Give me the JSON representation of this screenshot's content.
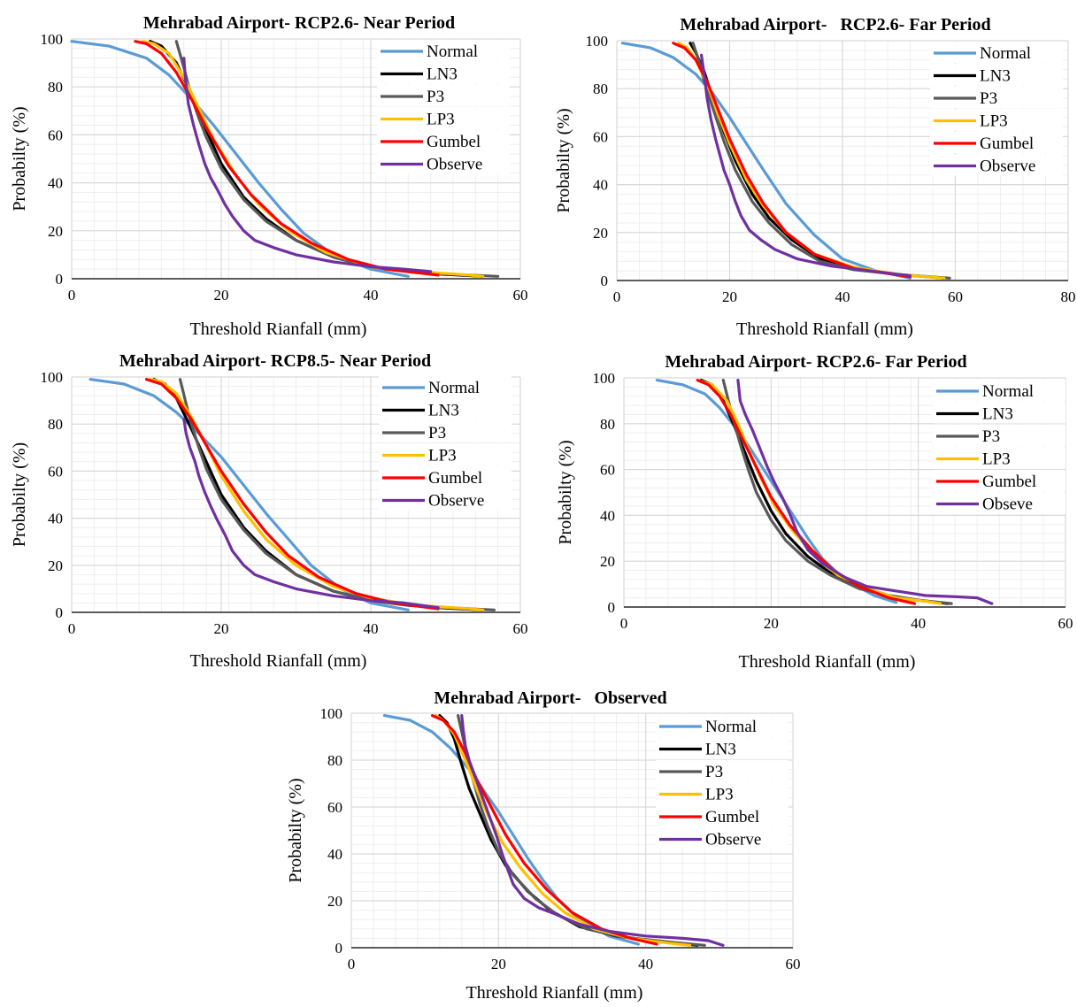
{
  "colors": {
    "Normal": "#5b9bd5",
    "LN3": "#000000",
    "P3": "#595959",
    "LP3": "#ffc000",
    "Gumbel": "#ff0000",
    "Observe": "#7030a0",
    "Obseve": "#7030a0"
  },
  "chart_data": [
    {
      "type": "line",
      "title": "Mehrabad Airport- RCP2.6- Near Period",
      "xlabel": "Threshold Rianfall (mm)",
      "ylabel": "Probabilty (%)",
      "xlim": [
        0,
        60
      ],
      "ylim": [
        0,
        100
      ],
      "xticks": [
        "0",
        "20",
        "40",
        "60"
      ],
      "yticks": [
        "0",
        "20",
        "40",
        "60",
        "80",
        "100"
      ],
      "grid": true,
      "legend": "top-right",
      "series": [
        {
          "name": "Normal",
          "x": [
            0,
            5,
            10,
            13,
            16,
            19,
            22,
            25,
            28,
            31,
            35,
            40,
            45
          ],
          "y": [
            99,
            97,
            92,
            85,
            75,
            64,
            52,
            40,
            29,
            19,
            10,
            4,
            1
          ]
        },
        {
          "name": "LN3",
          "x": [
            10.5,
            12,
            14,
            16,
            18,
            20,
            23,
            26,
            30,
            35,
            40,
            45,
            50,
            55
          ],
          "y": [
            99,
            97,
            90,
            77,
            62,
            48,
            34,
            25,
            16,
            9,
            5,
            3,
            1.8,
            1
          ]
        },
        {
          "name": "P3",
          "x": [
            14,
            15,
            16,
            17,
            18,
            20,
            23,
            26,
            30,
            35,
            40,
            45,
            50,
            57
          ],
          "y": [
            99,
            88,
            76,
            67,
            59,
            46,
            33,
            24,
            16,
            9,
            5,
            3,
            2,
            1
          ]
        },
        {
          "name": "LP3",
          "x": [
            9.5,
            11,
            13,
            15,
            17,
            19,
            22,
            25,
            29,
            34,
            40,
            46,
            52,
            55
          ],
          "y": [
            99,
            98,
            94,
            84,
            71,
            58,
            43,
            31,
            20,
            11,
            5,
            3,
            1.8,
            1
          ]
        },
        {
          "name": "Gumbel",
          "x": [
            8.5,
            10,
            12,
            14,
            16,
            18,
            21,
            24,
            28,
            32,
            37,
            42,
            49
          ],
          "y": [
            99,
            98,
            94,
            86,
            75,
            63,
            47,
            35,
            23,
            15,
            8,
            4,
            1.5
          ]
        },
        {
          "name": "Observe",
          "x": [
            15,
            15.2,
            15.6,
            16.3,
            17,
            17.8,
            18.6,
            19.5,
            20.5,
            21.5,
            23,
            24.5,
            27,
            30,
            35,
            40,
            44.5,
            48
          ],
          "y": [
            92,
            84,
            73,
            64,
            56,
            48,
            42,
            37,
            31,
            26,
            20,
            16,
            13,
            10,
            7,
            5,
            4,
            3
          ]
        }
      ]
    },
    {
      "type": "line",
      "title": "Mehrabad Airport-   RCP2.6- Far Period",
      "xlabel": "Threshold Rianfall (mm)",
      "ylabel": "Probabilty (%)",
      "xlim": [
        0,
        80
      ],
      "ylim": [
        0,
        100
      ],
      "xticks": [
        "0",
        "20",
        "40",
        "60",
        "80"
      ],
      "yticks": [
        "0",
        "20",
        "40",
        "60",
        "80",
        "100"
      ],
      "grid": true,
      "legend": "top-right",
      "series": [
        {
          "name": "Normal",
          "x": [
            1,
            6,
            10,
            14,
            17,
            20,
            23,
            26,
            30,
            35,
            40,
            46,
            52
          ],
          "y": [
            99,
            97,
            93,
            86,
            78,
            68,
            57,
            46,
            32,
            19,
            9,
            4,
            1
          ]
        },
        {
          "name": "LN3",
          "x": [
            13,
            14,
            15.5,
            17,
            19,
            21,
            24,
            27,
            31,
            36,
            42,
            50,
            58
          ],
          "y": [
            99,
            95,
            87,
            76,
            62,
            50,
            36,
            26,
            17,
            9,
            5,
            2.5,
            1
          ]
        },
        {
          "name": "P3",
          "x": [
            13.5,
            14.5,
            15.5,
            17,
            19,
            21,
            24,
            27,
            31,
            36,
            42,
            50,
            59
          ],
          "y": [
            99,
            92,
            83,
            72,
            58,
            46,
            33,
            24,
            15,
            8,
            4.5,
            2.5,
            1
          ]
        },
        {
          "name": "LP3",
          "x": [
            11,
            12.5,
            14,
            16,
            18,
            20,
            23,
            26,
            30,
            35,
            42,
            50,
            58
          ],
          "y": [
            99,
            97,
            92,
            82,
            69,
            57,
            42,
            31,
            20,
            11,
            5.5,
            2.5,
            1
          ]
        },
        {
          "name": "Gumbel",
          "x": [
            10,
            12,
            14,
            16,
            18,
            20,
            23,
            26,
            30,
            35,
            42,
            52
          ],
          "y": [
            99,
            97,
            92,
            83,
            71,
            59,
            44,
            32,
            20,
            11,
            5,
            1.5
          ]
        },
        {
          "name": "Observe",
          "x": [
            15,
            15.5,
            16,
            16.7,
            17.5,
            18.3,
            19,
            20,
            21,
            22,
            23.5,
            25.5,
            28,
            32,
            38,
            45,
            52
          ],
          "y": [
            94,
            86,
            76,
            67,
            59,
            52,
            46,
            40,
            33,
            27,
            21,
            17,
            13,
            9,
            6,
            4,
            2
          ]
        }
      ]
    },
    {
      "type": "line",
      "title": "Mehrabad Airport- RCP8.5- Near Period",
      "xlabel": "Threshold Rianfall (mm)",
      "ylabel": "Probabilty (%)",
      "xlim": [
        0,
        60
      ],
      "ylim": [
        0,
        100
      ],
      "xticks": [
        "0",
        "20",
        "40",
        "60"
      ],
      "yticks": [
        "0",
        "20",
        "40",
        "60",
        "80",
        "100"
      ],
      "grid": true,
      "legend": "top-right",
      "series": [
        {
          "name": "Normal",
          "x": [
            2.5,
            7,
            11,
            14,
            17,
            20,
            23,
            26,
            29,
            32,
            36,
            40,
            45
          ],
          "y": [
            99,
            97,
            92,
            85,
            76,
            66,
            54,
            42,
            31,
            20,
            10,
            4,
            1
          ]
        },
        {
          "name": "LN3",
          "x": [
            11,
            12.5,
            14,
            16,
            18,
            20,
            23,
            26,
            30,
            35,
            40,
            45,
            50,
            55
          ],
          "y": [
            99,
            97,
            91,
            78,
            64,
            50,
            36,
            26,
            16,
            9,
            5,
            3,
            1.8,
            1
          ]
        },
        {
          "name": "P3",
          "x": [
            14.5,
            15.2,
            16,
            17,
            18,
            20,
            23,
            26,
            30,
            35,
            40,
            45,
            50,
            56.5
          ],
          "y": [
            99,
            90,
            80,
            70,
            61,
            48,
            35,
            25,
            16,
            9,
            5,
            3,
            2,
            1
          ]
        },
        {
          "name": "LP3",
          "x": [
            10.5,
            12,
            14,
            16,
            18,
            20,
            23,
            26,
            30,
            35,
            40,
            46,
            52,
            55
          ],
          "y": [
            99,
            98,
            93,
            83,
            71,
            58,
            43,
            31,
            20,
            11,
            6,
            3,
            1.8,
            1
          ]
        },
        {
          "name": "Gumbel",
          "x": [
            10,
            12,
            14,
            16,
            18,
            20,
            23,
            26,
            29,
            33,
            38,
            43,
            49
          ],
          "y": [
            99,
            97,
            91,
            82,
            71,
            60,
            46,
            34,
            24,
            15,
            8,
            4,
            1.5
          ]
        },
        {
          "name": "Observe",
          "x": [
            15,
            15.3,
            15.8,
            16.5,
            17,
            17.8,
            18.6,
            19.5,
            20.5,
            21.5,
            23,
            24.5,
            27,
            30,
            35,
            40,
            44.5,
            49
          ],
          "y": [
            82,
            76,
            70,
            64,
            58,
            51,
            45,
            39,
            33,
            26,
            20,
            16,
            13,
            10,
            7,
            5,
            4,
            2
          ]
        }
      ]
    },
    {
      "type": "line",
      "title": "Mehrabad Airport- RCP2.6- Far Period",
      "xlabel": "Threshold Rianfall (mm)",
      "ylabel": "Probabilty (%)",
      "xlim": [
        0,
        60
      ],
      "ylim": [
        0,
        100
      ],
      "xticks": [
        "0",
        "20",
        "40",
        "60"
      ],
      "yticks": [
        "0",
        "20",
        "40",
        "60",
        "80",
        "100"
      ],
      "grid": true,
      "legend": "top-right",
      "series": [
        {
          "name": "Normal",
          "x": [
            4.5,
            8,
            11,
            13,
            15,
            17,
            19,
            21,
            23,
            25,
            27,
            30,
            34,
            37
          ],
          "y": [
            99,
            97,
            93,
            87,
            79,
            70,
            60,
            50,
            40,
            30,
            21,
            12,
            5,
            2
          ]
        },
        {
          "name": "LN3",
          "x": [
            10.5,
            12,
            13.5,
            15,
            16.5,
            18,
            20,
            22,
            25,
            28,
            32,
            36,
            40,
            44
          ],
          "y": [
            99,
            97,
            90,
            79,
            67,
            55,
            42,
            32,
            22,
            15,
            9,
            5,
            3,
            1.5
          ]
        },
        {
          "name": "P3",
          "x": [
            13.5,
            14.2,
            15,
            16,
            17,
            18,
            20,
            22,
            25,
            28,
            32,
            36,
            40,
            44.5
          ],
          "y": [
            99,
            90,
            80,
            69,
            59,
            50,
            38,
            29,
            20,
            14,
            8,
            5,
            3,
            1.5
          ]
        },
        {
          "name": "LP3",
          "x": [
            10,
            12,
            14,
            15.5,
            17,
            18.5,
            20.5,
            23,
            26,
            29,
            33,
            37,
            41,
            43
          ],
          "y": [
            99,
            97,
            90,
            80,
            68,
            57,
            44,
            33,
            22,
            14,
            8,
            4,
            2.5,
            1.5
          ]
        },
        {
          "name": "Gumbel",
          "x": [
            10,
            11.5,
            13,
            14.5,
            16,
            18,
            20,
            22.5,
            25.5,
            28.5,
            32,
            36,
            39.5
          ],
          "y": [
            99,
            97,
            92,
            84,
            74,
            61,
            48,
            36,
            25,
            16,
            9,
            4,
            1.5
          ]
        },
        {
          "name": "Obseve",
          "x": [
            15.5,
            15.8,
            16.5,
            17.5,
            18.5,
            19.5,
            20.5,
            21.5,
            22.5,
            23.5,
            25,
            27,
            30,
            33,
            37,
            41,
            45,
            48,
            50
          ],
          "y": [
            99,
            90,
            84,
            77,
            69,
            61,
            54,
            48,
            41,
            33,
            25,
            19,
            13,
            9,
            7,
            5,
            4.5,
            4,
            1.5
          ]
        }
      ]
    },
    {
      "type": "line",
      "title": "Mehrabad Airport-   Observed",
      "xlabel": "Threshold Rianfall (mm)",
      "ylabel": "Probabilty (%)",
      "xlim": [
        0,
        60
      ],
      "ylim": [
        0,
        100
      ],
      "xticks": [
        "0",
        "20",
        "40",
        "60"
      ],
      "yticks": [
        "0",
        "20",
        "40",
        "60",
        "80",
        "100"
      ],
      "grid": true,
      "legend": "top-right",
      "series": [
        {
          "name": "Normal",
          "x": [
            4.5,
            8,
            11,
            13.5,
            16,
            18,
            20,
            22,
            24,
            26,
            28,
            31,
            35,
            39
          ],
          "y": [
            99,
            97,
            92,
            85,
            76,
            67,
            58,
            48,
            38,
            29,
            21,
            12,
            5,
            1.5
          ]
        },
        {
          "name": "LN3",
          "x": [
            12,
            13,
            14,
            15,
            16,
            17.5,
            19,
            21,
            24,
            27,
            31,
            36,
            42,
            47
          ],
          "y": [
            99,
            96,
            89,
            78,
            68,
            57,
            46,
            35,
            24,
            16,
            9,
            5,
            2.5,
            1
          ]
        },
        {
          "name": "P3",
          "x": [
            14.5,
            15,
            15.7,
            16.5,
            17.5,
            18.5,
            20,
            22,
            25,
            28,
            32,
            37,
            43,
            48
          ],
          "y": [
            99,
            92,
            82,
            72,
            61,
            52,
            41,
            31,
            21,
            14,
            8,
            4.5,
            2.5,
            1
          ]
        },
        {
          "name": "LP3",
          "x": [
            11.5,
            12.5,
            14,
            15.5,
            17,
            18.5,
            20.5,
            23,
            26,
            29,
            33,
            38,
            43,
            46
          ],
          "y": [
            99,
            97,
            91,
            80,
            68,
            57,
            45,
            34,
            23,
            15,
            8,
            4,
            2,
            1
          ]
        },
        {
          "name": "Gumbel",
          "x": [
            11,
            12.5,
            14,
            15.5,
            17,
            19,
            21,
            23.5,
            26.5,
            30,
            34,
            38,
            41.5
          ],
          "y": [
            99,
            97,
            92,
            83,
            72,
            60,
            48,
            36,
            25,
            15,
            8,
            4,
            1.5
          ]
        },
        {
          "name": "Observe",
          "x": [
            15,
            15.2,
            15.5,
            16,
            16.7,
            17.5,
            18.3,
            19,
            19.8,
            20.5,
            21.3,
            22,
            23.5,
            25.5,
            28,
            31,
            35,
            40,
            45,
            48.5,
            50.5
          ],
          "y": [
            99,
            93,
            86,
            80,
            74,
            67,
            60,
            54,
            47,
            40,
            33,
            27,
            21,
            17,
            14,
            10,
            7,
            5,
            4,
            3,
            1
          ]
        }
      ]
    }
  ]
}
